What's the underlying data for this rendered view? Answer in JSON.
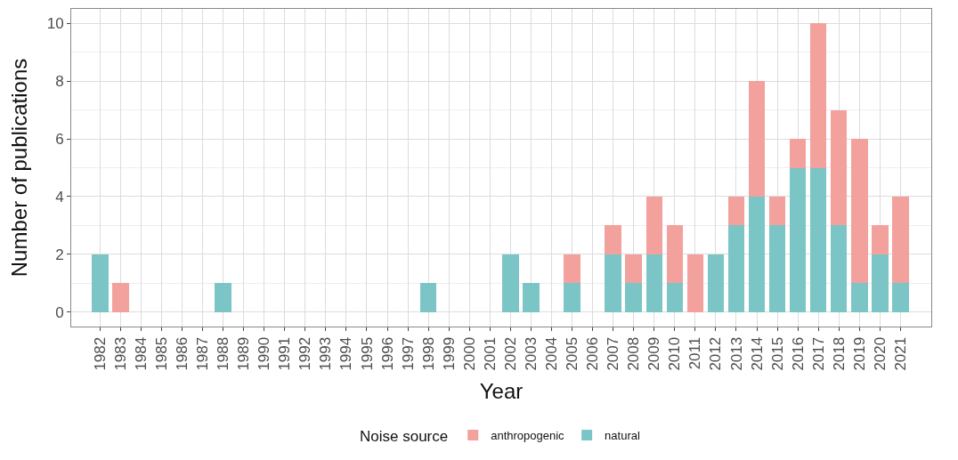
{
  "chart_data": {
    "type": "bar",
    "xlabel": "Year",
    "ylabel": "Number of publications",
    "legend_title": "Noise source",
    "categories": [
      "1982",
      "1983",
      "1984",
      "1985",
      "1986",
      "1987",
      "1988",
      "1989",
      "1990",
      "1991",
      "1992",
      "1993",
      "1994",
      "1995",
      "1996",
      "1997",
      "1998",
      "1999",
      "2000",
      "2001",
      "2002",
      "2003",
      "2004",
      "2005",
      "2006",
      "2007",
      "2008",
      "2009",
      "2010",
      "2011",
      "2012",
      "2013",
      "2014",
      "2015",
      "2016",
      "2017",
      "2018",
      "2019",
      "2020",
      "2021"
    ],
    "stacked": true,
    "series": [
      {
        "name": "natural",
        "color": "#7cc5c6",
        "values": [
          2,
          0,
          0,
          0,
          0,
          0,
          1,
          0,
          0,
          0,
          0,
          0,
          0,
          0,
          0,
          0,
          1,
          0,
          0,
          0,
          2,
          1,
          0,
          1,
          0,
          2,
          1,
          2,
          1,
          0,
          2,
          3,
          4,
          3,
          5,
          5,
          3,
          1,
          2,
          1
        ]
      },
      {
        "name": "anthropogenic",
        "color": "#f2a19d",
        "values": [
          0,
          1,
          0,
          0,
          0,
          0,
          0,
          0,
          0,
          0,
          0,
          0,
          0,
          0,
          0,
          0,
          0,
          0,
          0,
          0,
          0,
          0,
          0,
          1,
          0,
          1,
          1,
          2,
          2,
          2,
          0,
          1,
          4,
          1,
          1,
          5,
          4,
          5,
          1,
          3
        ]
      }
    ],
    "ylim": [
      -0.5,
      10.5
    ],
    "yticks": [
      0,
      2,
      4,
      6,
      8,
      10
    ],
    "grid": true,
    "legend": "bottom"
  }
}
